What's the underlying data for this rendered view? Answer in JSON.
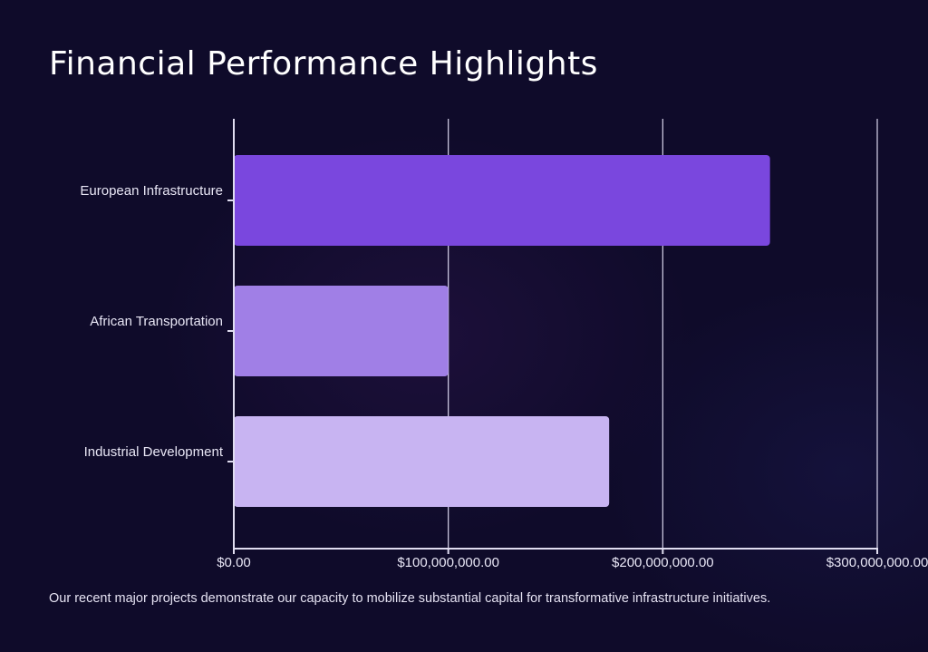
{
  "title": "Financial Performance Highlights",
  "caption": "Our recent major projects demonstrate our capacity to mobilize substantial capital for transformative infrastructure initiatives.",
  "colors": {
    "background": "#0f0b2a",
    "bar_1": "#7a47de",
    "bar_2": "#a07fe6",
    "bar_3": "#c8b4f2",
    "axis": "#e0ddf0",
    "grid": "#d8d4ec"
  },
  "chart_data": {
    "type": "bar",
    "orientation": "horizontal",
    "categories": [
      "European Infrastructure",
      "African Transportation",
      "Industrial Development"
    ],
    "values": [
      250000000,
      100000000,
      175000000
    ],
    "xlim": [
      0,
      300000000
    ],
    "ticks": [
      0,
      100000000,
      200000000,
      300000000
    ],
    "tick_labels": [
      "$0.00",
      "$100,000,000.00",
      "$200,000,000.00",
      "$300,000,000.00"
    ],
    "grid": true,
    "legend": "none"
  }
}
